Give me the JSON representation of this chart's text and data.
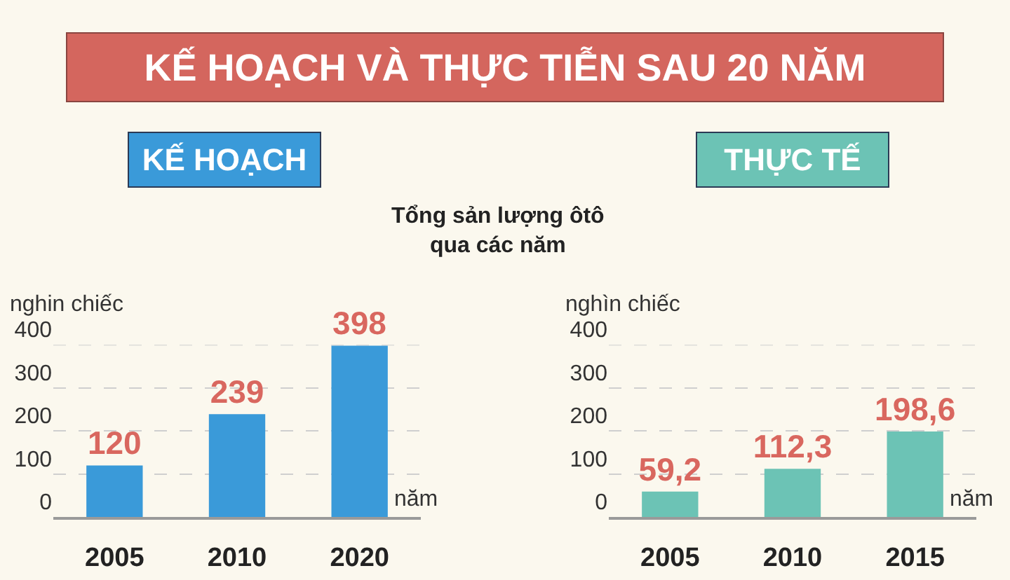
{
  "chart_data": [
    {
      "type": "other",
      "title": "KẾ HOẠCH VÀ THỰC TIỄN SAU 20 NĂM",
      "subtitle": "Tổng sản lượng ôtô\nqua các năm"
    },
    {
      "type": "bar",
      "title": "KẾ HOẠCH",
      "ylabel": "nghin chiếc",
      "xlabel": "năm",
      "categories": [
        "2005",
        "2010",
        "2020"
      ],
      "values": [
        120,
        239,
        398
      ],
      "color": "#3a9ad9",
      "ylim": [
        0,
        400
      ],
      "yticks": [
        0,
        100,
        200,
        300,
        400
      ],
      "grid": "y",
      "data_labels": true
    },
    {
      "type": "bar",
      "title": "THỰC TẾ",
      "ylabel": "nghìn chiếc",
      "xlabel": "năm",
      "categories": [
        "2005",
        "2010",
        "2015"
      ],
      "values": [
        59.2,
        112.3,
        198.6
      ],
      "value_labels": [
        "59,2",
        "112,3",
        "198,6"
      ],
      "color": "#6cc3b5",
      "ylim": [
        0,
        400
      ],
      "yticks": [
        0,
        100,
        200,
        300,
        400
      ],
      "grid": "y"
    }
  ]
}
